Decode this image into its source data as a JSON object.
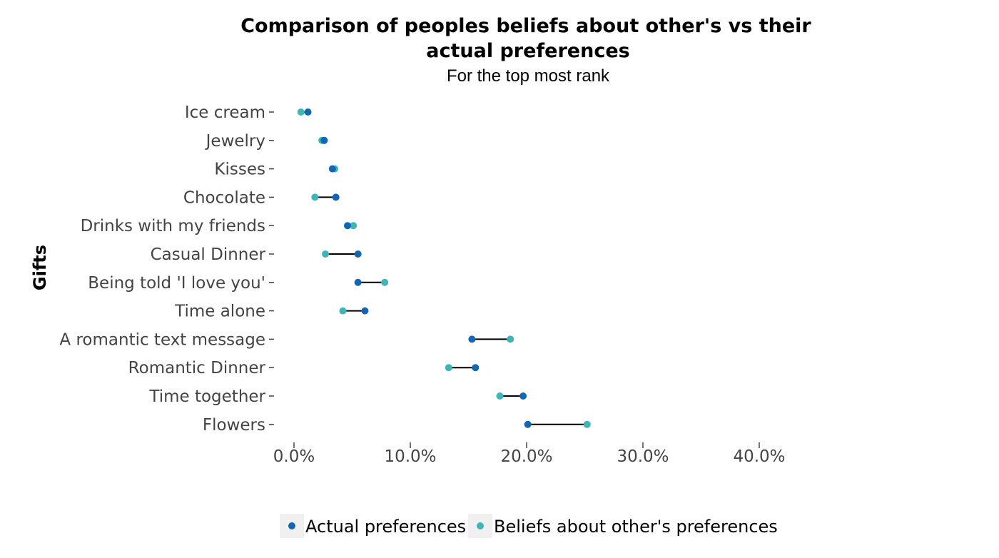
{
  "chart_data": {
    "type": "dumbbell",
    "title": "Comparison of peoples beliefs about other's vs their actual preferences",
    "title_lines": [
      "Comparison of peoples beliefs about other's vs their",
      "actual preferences"
    ],
    "subtitle": "For the top most rank",
    "ylabel": "Gifts",
    "xlabel": "",
    "x_tick_labels": [
      "0.0%",
      "10.0%",
      "20.0%",
      "30.0%",
      "40.0%"
    ],
    "x_ticks": [
      0,
      10,
      20,
      30,
      40
    ],
    "xlim": [
      -1.5,
      42
    ],
    "x_unit": "percent",
    "grid": false,
    "legend_position": "bottom",
    "categories": [
      "Ice cream",
      "Jewelry",
      "Kisses",
      "Chocolate",
      "Drinks with my friends",
      "Casual Dinner",
      "Being told 'I love you'",
      "Time alone",
      "A romantic text message",
      "Romantic Dinner",
      "Time together",
      "Flowers"
    ],
    "series": [
      {
        "name": "Actual preferences",
        "color": "#1266b5",
        "values": [
          1.2,
          2.6,
          3.3,
          3.6,
          4.6,
          5.5,
          5.5,
          6.1,
          15.3,
          15.6,
          19.7,
          20.1
        ]
      },
      {
        "name": "Beliefs about other's preferences",
        "color": "#3cb6b6",
        "values": [
          0.6,
          2.4,
          3.5,
          1.8,
          5.1,
          2.7,
          7.8,
          4.2,
          18.6,
          13.3,
          17.7,
          25.2
        ]
      }
    ]
  }
}
